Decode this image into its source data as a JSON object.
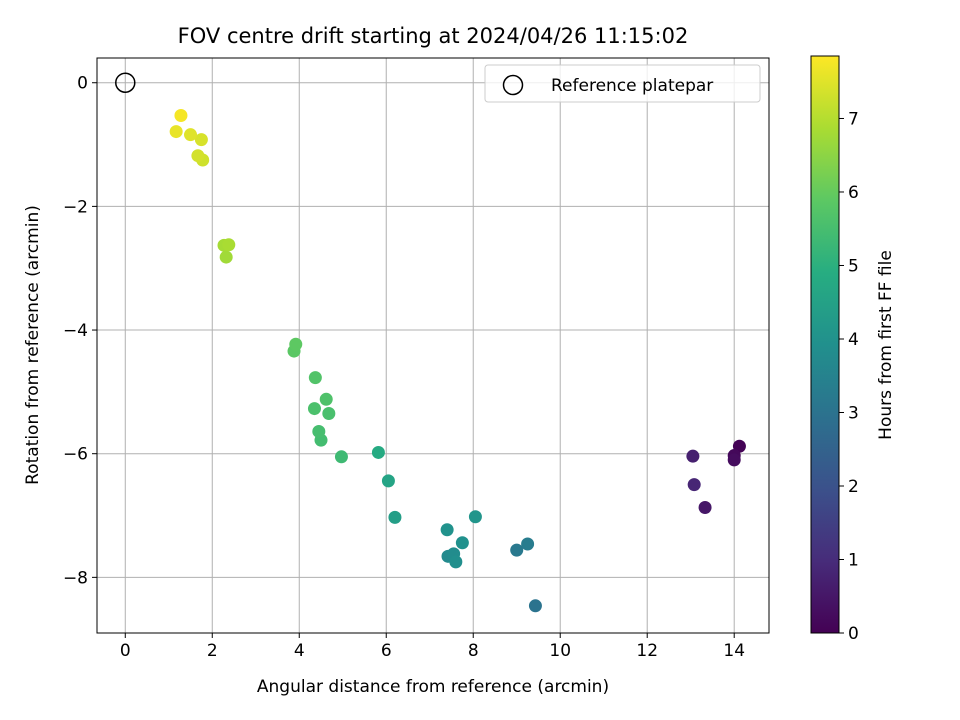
{
  "chart_data": {
    "type": "scatter",
    "title": "FOV centre drift starting at 2024/04/26 11:15:02",
    "xlabel": "Angular distance from reference (arcmin)",
    "ylabel": "Rotation from reference (arcmin)",
    "xlim": [
      -0.65,
      14.8
    ],
    "ylim": [
      -8.9,
      0.4
    ],
    "xticks": [
      0,
      2,
      4,
      6,
      8,
      10,
      12,
      14
    ],
    "yticks": [
      0,
      -2,
      -4,
      -6,
      -8
    ],
    "xtick_labels": [
      "0",
      "2",
      "4",
      "6",
      "8",
      "10",
      "12",
      "14"
    ],
    "ytick_labels": [
      "0",
      "−2",
      "−4",
      "−6",
      "−8"
    ],
    "grid": true,
    "legend": {
      "position": "top-right",
      "entries": [
        "Reference platepar"
      ]
    },
    "reference_point": {
      "name": "Reference platepar",
      "x": 0,
      "y": 0
    },
    "colorbar": {
      "label": "Hours from first FF file",
      "range": [
        0,
        7.85
      ],
      "ticks": [
        0,
        1,
        2,
        3,
        4,
        5,
        6,
        7
      ],
      "tick_labels": [
        "0",
        "1",
        "2",
        "3",
        "4",
        "5",
        "6",
        "7"
      ],
      "colormap": "viridis"
    },
    "points": [
      {
        "x": 14.12,
        "y": -5.88,
        "hours": 0.05
      },
      {
        "x": 14.0,
        "y": -6.03,
        "hours": 0.15
      },
      {
        "x": 14.0,
        "y": -6.1,
        "hours": 0.25
      },
      {
        "x": 13.33,
        "y": -6.87,
        "hours": 0.5
      },
      {
        "x": 13.05,
        "y": -6.04,
        "hours": 0.7
      },
      {
        "x": 13.08,
        "y": -6.5,
        "hours": 0.85
      },
      {
        "x": 9.43,
        "y": -8.46,
        "hours": 3.0
      },
      {
        "x": 9.0,
        "y": -7.56,
        "hours": 3.2
      },
      {
        "x": 9.25,
        "y": -7.46,
        "hours": 3.3
      },
      {
        "x": 7.42,
        "y": -7.66,
        "hours": 3.75
      },
      {
        "x": 7.55,
        "y": -7.62,
        "hours": 3.8
      },
      {
        "x": 7.6,
        "y": -7.75,
        "hours": 3.9
      },
      {
        "x": 7.75,
        "y": -7.44,
        "hours": 3.95
      },
      {
        "x": 7.4,
        "y": -7.23,
        "hours": 4.0
      },
      {
        "x": 8.05,
        "y": -7.02,
        "hours": 4.1
      },
      {
        "x": 6.2,
        "y": -7.03,
        "hours": 4.4
      },
      {
        "x": 6.05,
        "y": -6.44,
        "hours": 4.6
      },
      {
        "x": 5.82,
        "y": -5.98,
        "hours": 4.8
      },
      {
        "x": 4.97,
        "y": -6.05,
        "hours": 5.35
      },
      {
        "x": 4.5,
        "y": -5.78,
        "hours": 5.45
      },
      {
        "x": 4.45,
        "y": -5.64,
        "hours": 5.5
      },
      {
        "x": 4.68,
        "y": -5.35,
        "hours": 5.55
      },
      {
        "x": 4.35,
        "y": -5.27,
        "hours": 5.6
      },
      {
        "x": 4.62,
        "y": -5.12,
        "hours": 5.65
      },
      {
        "x": 4.37,
        "y": -4.77,
        "hours": 5.7
      },
      {
        "x": 3.88,
        "y": -4.34,
        "hours": 5.85
      },
      {
        "x": 3.92,
        "y": -4.23,
        "hours": 5.9
      },
      {
        "x": 2.32,
        "y": -2.82,
        "hours": 6.75
      },
      {
        "x": 2.27,
        "y": -2.63,
        "hours": 6.8
      },
      {
        "x": 2.38,
        "y": -2.62,
        "hours": 6.85
      },
      {
        "x": 1.78,
        "y": -1.25,
        "hours": 7.3
      },
      {
        "x": 1.67,
        "y": -1.18,
        "hours": 7.35
      },
      {
        "x": 1.75,
        "y": -0.92,
        "hours": 7.4
      },
      {
        "x": 1.5,
        "y": -0.84,
        "hours": 7.5
      },
      {
        "x": 1.17,
        "y": -0.79,
        "hours": 7.6
      },
      {
        "x": 1.28,
        "y": -0.53,
        "hours": 7.75
      }
    ]
  }
}
